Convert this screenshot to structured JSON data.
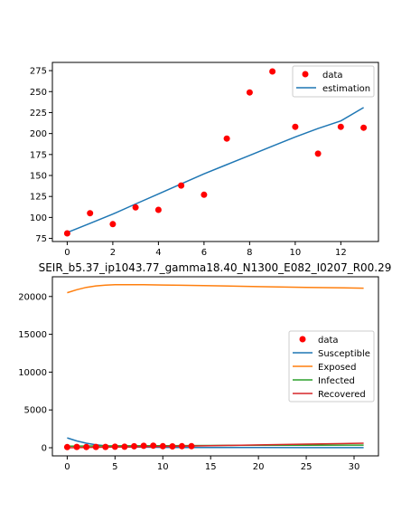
{
  "chart_data": [
    {
      "type": "scatter",
      "title": "",
      "xlabel": "",
      "ylabel": "",
      "xlim": [
        -0.65,
        13.65
      ],
      "ylim": [
        71.3,
        284.8
      ],
      "xticks": [
        0,
        2,
        4,
        6,
        8,
        10,
        12
      ],
      "yticks": [
        75,
        100,
        125,
        150,
        175,
        200,
        225,
        250,
        275
      ],
      "grid": false,
      "legend_position": "top-right",
      "series": [
        {
          "name": "data",
          "kind": "scatter",
          "color": "#ff0000",
          "x": [
            0,
            1,
            2,
            3,
            4,
            5,
            6,
            7,
            8,
            9,
            10,
            11,
            12,
            13
          ],
          "y": [
            81,
            105,
            92,
            112,
            109,
            138,
            127,
            194,
            249,
            274,
            208,
            176,
            208,
            207
          ]
        },
        {
          "name": "estimation",
          "kind": "line",
          "color": "#1f77b4",
          "x": [
            0,
            1,
            2,
            3,
            4,
            5,
            6,
            7,
            8,
            9,
            10,
            11,
            12,
            13
          ],
          "y": [
            82,
            93,
            104,
            116,
            128,
            140,
            152,
            163,
            174,
            185,
            196,
            206,
            215,
            231
          ]
        }
      ]
    },
    {
      "type": "line",
      "title": "SEIR_b5.37_ip1043.77_gamma18.40_N1300_E082_I0207_R00.29",
      "xlabel": "",
      "ylabel": "",
      "xlim": [
        -1.55,
        32.55
      ],
      "ylim": [
        -1075,
        22605
      ],
      "xticks": [
        0,
        5,
        10,
        15,
        20,
        25,
        30
      ],
      "yticks": [
        0,
        5000,
        10000,
        15000,
        20000
      ],
      "grid": false,
      "legend_position": "center-right",
      "series": [
        {
          "name": "data",
          "kind": "scatter",
          "color": "#ff0000",
          "x": [
            0,
            1,
            2,
            3,
            4,
            5,
            6,
            7,
            8,
            9,
            10,
            11,
            12,
            13
          ],
          "y": [
            81,
            105,
            92,
            112,
            109,
            138,
            127,
            194,
            249,
            274,
            208,
            176,
            208,
            207
          ]
        },
        {
          "name": "Susceptible",
          "kind": "line",
          "color": "#1f77b4",
          "x": [
            0,
            1,
            2,
            3,
            4,
            5,
            6,
            8,
            10,
            12,
            15,
            20,
            25,
            31
          ],
          "y": [
            1300,
            900,
            600,
            400,
            250,
            150,
            100,
            70,
            50,
            40,
            30,
            20,
            15,
            10
          ]
        },
        {
          "name": "Exposed",
          "kind": "line",
          "color": "#ff7f0e",
          "x": [
            0,
            1,
            2,
            3,
            4,
            5,
            6,
            7,
            8,
            10,
            12,
            15,
            20,
            25,
            31
          ],
          "y": [
            20500,
            20900,
            21200,
            21400,
            21500,
            21550,
            21560,
            21560,
            21550,
            21520,
            21480,
            21420,
            21300,
            21200,
            21100
          ]
        },
        {
          "name": "Infected",
          "kind": "line",
          "color": "#2ca02c",
          "x": [
            0,
            5,
            10,
            15,
            20,
            25,
            31
          ],
          "y": [
            210,
            250,
            280,
            300,
            320,
            340,
            350
          ]
        },
        {
          "name": "Recovered",
          "kind": "line",
          "color": "#d62728",
          "x": [
            0,
            5,
            10,
            15,
            20,
            25,
            31
          ],
          "y": [
            0,
            80,
            170,
            260,
            370,
            480,
            600
          ]
        }
      ]
    }
  ]
}
